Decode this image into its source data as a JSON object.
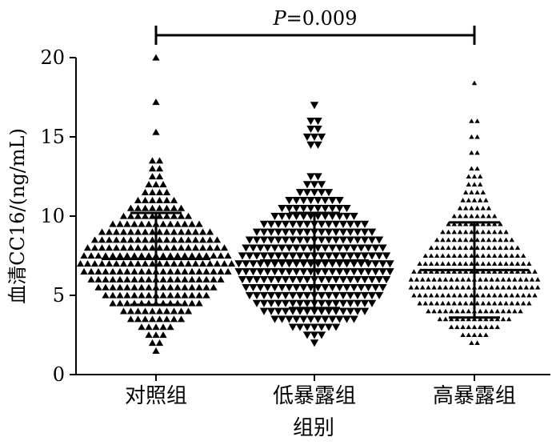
{
  "chart_data": {
    "type": "scatter",
    "ylabel": "血清CC16/(ng/mL)",
    "xlabel": "组别",
    "ylim": [
      0,
      20
    ],
    "yticks": [
      0,
      5,
      10,
      15,
      20
    ],
    "categories": [
      "对照组",
      "低暴露组",
      "高暴露组"
    ],
    "markers": [
      "triangle-up",
      "triangle-down",
      "triangle-up-small"
    ],
    "groups": [
      {
        "name": "对照组",
        "mean": 7.3,
        "upper": 10.2,
        "lower": 4.4,
        "bins": [
          [
            1.5,
            1
          ],
          [
            2,
            2
          ],
          [
            2.5,
            3
          ],
          [
            3,
            5
          ],
          [
            3.5,
            8
          ],
          [
            4,
            10
          ],
          [
            4.5,
            13
          ],
          [
            5,
            15
          ],
          [
            5.5,
            17
          ],
          [
            6,
            19
          ],
          [
            6.5,
            21
          ],
          [
            7,
            22
          ],
          [
            7.5,
            21
          ],
          [
            8,
            20
          ],
          [
            8.5,
            18
          ],
          [
            9,
            16
          ],
          [
            9.5,
            13
          ],
          [
            10,
            10
          ],
          [
            10.5,
            8
          ],
          [
            11,
            6
          ],
          [
            11.5,
            4
          ],
          [
            12,
            3
          ],
          [
            12.5,
            2
          ],
          [
            13,
            2
          ],
          [
            13.5,
            2
          ],
          [
            15.3,
            1
          ],
          [
            17.2,
            1
          ],
          [
            20,
            1
          ]
        ]
      },
      {
        "name": "低暴露组",
        "mean": 7.2,
        "upper": 10.2,
        "lower": 4.2,
        "bins": [
          [
            2,
            1
          ],
          [
            2.5,
            3
          ],
          [
            3,
            7
          ],
          [
            3.5,
            12
          ],
          [
            4,
            15
          ],
          [
            4.5,
            17
          ],
          [
            5,
            19
          ],
          [
            5.5,
            20
          ],
          [
            6,
            21
          ],
          [
            6.5,
            22
          ],
          [
            7,
            22
          ],
          [
            7.5,
            21
          ],
          [
            8,
            20
          ],
          [
            8.5,
            19
          ],
          [
            9,
            17
          ],
          [
            9.5,
            15
          ],
          [
            10,
            12
          ],
          [
            10.5,
            10
          ],
          [
            11,
            8
          ],
          [
            11.5,
            5
          ],
          [
            12,
            3
          ],
          [
            12.5,
            2
          ],
          [
            14.5,
            2
          ],
          [
            15,
            3
          ],
          [
            15.5,
            2
          ],
          [
            16,
            2
          ],
          [
            17,
            1
          ]
        ]
      },
      {
        "name": "高暴露组",
        "mean": 6.6,
        "upper": 9.6,
        "lower": 3.6,
        "bins": [
          [
            2,
            2
          ],
          [
            2.5,
            5
          ],
          [
            3,
            9
          ],
          [
            3.5,
            13
          ],
          [
            4,
            17
          ],
          [
            4.5,
            20
          ],
          [
            5,
            22
          ],
          [
            5.5,
            23
          ],
          [
            6,
            23
          ],
          [
            6.5,
            22
          ],
          [
            7,
            20
          ],
          [
            7.5,
            18
          ],
          [
            8,
            16
          ],
          [
            8.5,
            14
          ],
          [
            9,
            12
          ],
          [
            9.5,
            10
          ],
          [
            10,
            8
          ],
          [
            10.5,
            6
          ],
          [
            11,
            5
          ],
          [
            11.5,
            4
          ],
          [
            12,
            3
          ],
          [
            12.5,
            3
          ],
          [
            13,
            2
          ],
          [
            14,
            2
          ],
          [
            15,
            2
          ],
          [
            16,
            2
          ],
          [
            18.4,
            1
          ]
        ]
      }
    ],
    "annotation": {
      "text": "P=0.009",
      "from": 0,
      "to": 2
    }
  }
}
